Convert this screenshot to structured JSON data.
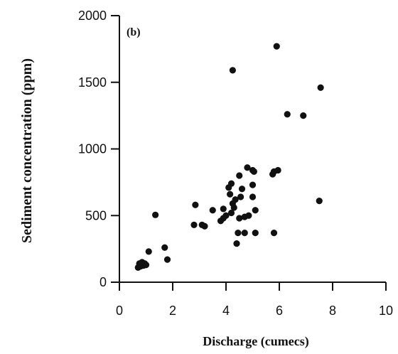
{
  "chart_data": {
    "type": "scatter",
    "panel_label": "(b)",
    "xlabel": "Discharge (cumecs)",
    "ylabel": "Sediment concentration (ppm)",
    "xlim": [
      0,
      10
    ],
    "ylim": [
      0,
      2000
    ],
    "xticks": [
      "0",
      "2",
      "4",
      "6",
      "8",
      "10"
    ],
    "yticks": [
      "0",
      "500",
      "1000",
      "1500",
      "2000"
    ],
    "points": [
      [
        0.7,
        110
      ],
      [
        0.75,
        140
      ],
      [
        0.8,
        120
      ],
      [
        0.85,
        150
      ],
      [
        0.9,
        125
      ],
      [
        0.95,
        140
      ],
      [
        1.0,
        130
      ],
      [
        1.1,
        230
      ],
      [
        1.35,
        505
      ],
      [
        1.7,
        260
      ],
      [
        1.8,
        170
      ],
      [
        2.8,
        430
      ],
      [
        2.85,
        580
      ],
      [
        3.1,
        430
      ],
      [
        3.2,
        420
      ],
      [
        3.5,
        540
      ],
      [
        3.8,
        460
      ],
      [
        3.9,
        480
      ],
      [
        3.9,
        550
      ],
      [
        4.0,
        500
      ],
      [
        4.1,
        710
      ],
      [
        4.15,
        660
      ],
      [
        4.2,
        740
      ],
      [
        4.2,
        520
      ],
      [
        4.25,
        590
      ],
      [
        4.25,
        1590
      ],
      [
        4.3,
        560
      ],
      [
        4.35,
        620
      ],
      [
        4.4,
        290
      ],
      [
        4.45,
        370
      ],
      [
        4.5,
        800
      ],
      [
        4.5,
        480
      ],
      [
        4.55,
        640
      ],
      [
        4.6,
        700
      ],
      [
        4.7,
        490
      ],
      [
        4.7,
        370
      ],
      [
        4.8,
        860
      ],
      [
        4.85,
        500
      ],
      [
        5.0,
        840
      ],
      [
        5.0,
        730
      ],
      [
        5.0,
        640
      ],
      [
        5.05,
        830
      ],
      [
        5.1,
        540
      ],
      [
        5.1,
        370
      ],
      [
        5.75,
        810
      ],
      [
        5.8,
        830
      ],
      [
        5.8,
        370
      ],
      [
        5.9,
        1770
      ],
      [
        5.95,
        840
      ],
      [
        6.3,
        1260
      ],
      [
        6.9,
        1250
      ],
      [
        7.55,
        1460
      ],
      [
        7.5,
        610
      ]
    ]
  }
}
